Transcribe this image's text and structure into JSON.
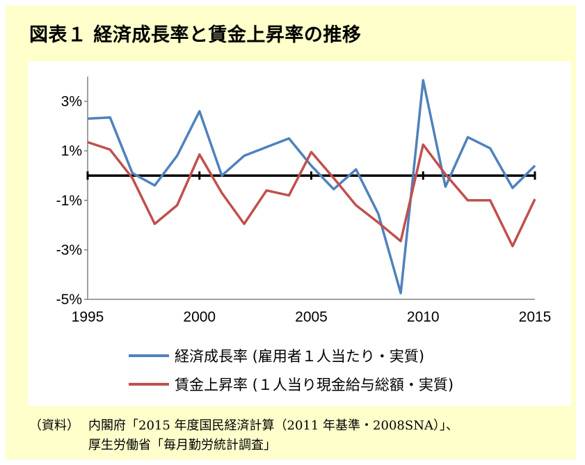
{
  "title": "図表１ 経済成長率と賃金上昇率の推移",
  "source": {
    "label": "（資料）",
    "line1": "内閣府「2015 年度国民経済計算（2011 年基準・2008SNA）」、",
    "line2": "厚生労働省「毎月勤労統計調査」"
  },
  "chart_data": {
    "type": "line",
    "title": "",
    "xlabel": "",
    "ylabel": "",
    "x": [
      1995,
      1996,
      1997,
      1998,
      1999,
      2000,
      2001,
      2002,
      2003,
      2004,
      2005,
      2006,
      2007,
      2008,
      2009,
      2010,
      2011,
      2012,
      2013,
      2014,
      2015
    ],
    "xlim": [
      1995,
      2015
    ],
    "ylim": [
      -5,
      4
    ],
    "x_ticks": [
      "1995",
      "2000",
      "2005",
      "2010",
      "2015"
    ],
    "y_ticks": [
      {
        "value": 3,
        "label": "3%"
      },
      {
        "value": 1,
        "label": "1%"
      },
      {
        "value": -1,
        "label": "-1%"
      },
      {
        "value": -3,
        "label": "-3%"
      },
      {
        "value": -5,
        "label": "-5%"
      }
    ],
    "grid": false,
    "legend_position": "bottom",
    "series": [
      {
        "name": "経済成長率 (雇用者１人当たり・実質)",
        "color": "#4f81bd",
        "values": [
          2.3,
          2.35,
          0.1,
          -0.4,
          0.8,
          2.6,
          0.0,
          0.8,
          1.15,
          1.5,
          0.4,
          -0.55,
          0.25,
          -1.55,
          -4.75,
          3.85,
          -0.45,
          1.55,
          1.1,
          -0.5,
          0.4
        ]
      },
      {
        "name": "賃金上昇率 (１人当り現金給与総額・実質)",
        "color": "#c0504d",
        "values": [
          1.35,
          1.05,
          -0.1,
          -1.95,
          -1.2,
          0.85,
          -0.7,
          -1.95,
          -0.6,
          -0.8,
          0.95,
          -0.1,
          -1.2,
          -1.9,
          -2.65,
          1.25,
          0.05,
          -1.0,
          -1.0,
          -2.85,
          -0.95
        ]
      }
    ]
  }
}
